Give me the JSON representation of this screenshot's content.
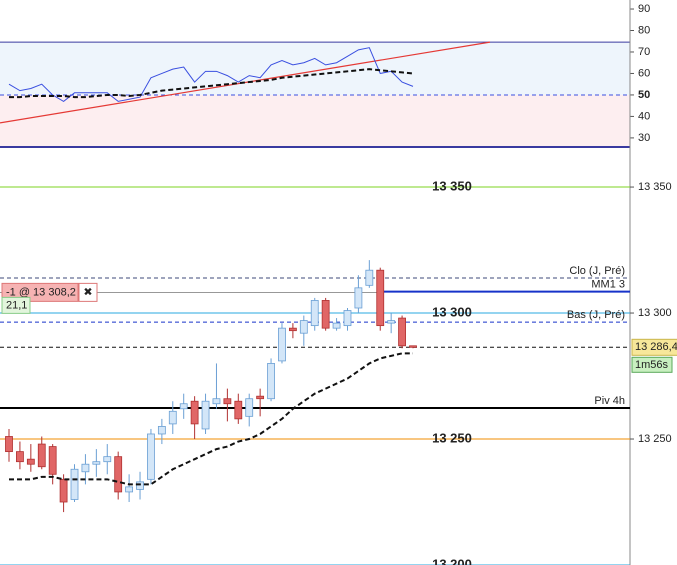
{
  "chart_data": [
    {
      "type": "line",
      "ylim": [
        25.3,
        94.2
      ],
      "yticks": [
        90,
        80,
        70,
        60,
        50,
        40,
        30
      ],
      "bands": {
        "upper": 74.6,
        "mid": 50,
        "lower": 25.3
      },
      "trendline": {
        "start": 37,
        "end": 74.6,
        "color": "#e53935"
      },
      "series": [
        {
          "color": "#3a4fe0",
          "values": [
            55,
            52,
            53,
            55,
            50,
            47,
            51,
            51,
            51,
            51,
            47,
            48,
            49,
            58,
            60,
            62,
            63,
            56,
            61,
            61,
            59,
            56,
            59,
            58,
            64,
            66,
            64,
            65,
            67,
            64,
            65,
            68,
            71,
            72,
            60,
            61,
            56,
            54
          ]
        },
        {
          "color": "#111111",
          "dash": true,
          "values": [
            49,
            49,
            49.5,
            49.5,
            49.5,
            49.5,
            49,
            49,
            49.5,
            50,
            50,
            49.5,
            50,
            51,
            52,
            52.5,
            53,
            53.5,
            54,
            54.5,
            55,
            55.5,
            56,
            56.5,
            57,
            58,
            58.5,
            59,
            59.5,
            60,
            60.5,
            61,
            61.5,
            62,
            61.5,
            61,
            60.5,
            60
          ]
        }
      ]
    },
    {
      "type": "candlestick",
      "ylim": [
        13200,
        13365.5
      ],
      "yticks": [
        {
          "value": 13350,
          "label": "13 350"
        },
        {
          "value": 13300,
          "label": "13 300"
        },
        {
          "value": 13250,
          "label": "13 250"
        }
      ],
      "open": [
        13251,
        13245,
        13242,
        13248,
        13247,
        13234,
        13226,
        13237,
        13240,
        13241,
        13243,
        13229,
        13230,
        13234,
        13252,
        13256,
        13262,
        13265,
        13254,
        13264,
        13266,
        13265,
        13259,
        13267,
        13266,
        13281,
        13294,
        13292,
        13295,
        13305,
        13294,
        13295,
        13302,
        13311,
        13317,
        13296,
        13298,
        13287
      ],
      "high": [
        13254,
        13249,
        13248,
        13251,
        13248,
        13236,
        13240,
        13244,
        13246,
        13248,
        13245,
        13236,
        13237,
        13254,
        13258,
        13265,
        13268,
        13267,
        13268,
        13280,
        13270,
        13268,
        13268,
        13270,
        13282,
        13296,
        13296,
        13299,
        13306,
        13306,
        13298,
        13302,
        13315,
        13321,
        13318,
        13300,
        13299,
        13287
      ],
      "low": [
        13241,
        13238,
        13237,
        13238,
        13232,
        13221,
        13225,
        13232,
        13235,
        13236,
        13226,
        13225,
        13226,
        13232,
        13248,
        13252,
        13258,
        13250,
        13252,
        13262,
        13257,
        13256,
        13255,
        13259,
        13265,
        13280,
        13290,
        13287,
        13293,
        13293,
        13293,
        13293,
        13300,
        13310,
        13293,
        13292,
        13286,
        13286
      ],
      "close": [
        13245,
        13241,
        13240,
        13239,
        13236,
        13225,
        13238,
        13240,
        13241,
        13243,
        13229,
        13231,
        13233,
        13252,
        13255,
        13261,
        13264,
        13256,
        13265,
        13266,
        13264,
        13258,
        13266,
        13266,
        13280,
        13294,
        13293,
        13297,
        13305,
        13294,
        13296,
        13301,
        13310,
        13317,
        13295,
        13297,
        13287,
        13286.4
      ],
      "up_color": "#d3e6f8",
      "down_color": "#e06666",
      "moving_average": {
        "color": "#111111",
        "values": [
          13234,
          13234,
          13234,
          13235,
          13235,
          13234,
          13234,
          13234,
          13234,
          13234,
          13233,
          13232,
          13232,
          13232,
          13235,
          13238,
          13240,
          13242,
          13244,
          13246,
          13247,
          13249,
          13250,
          13252,
          13255,
          13258,
          13262,
          13265,
          13268,
          13270,
          13272,
          13274,
          13277,
          13280,
          13282,
          13283,
          13284,
          13284
        ]
      },
      "levels": [
        {
          "value": 13350,
          "label": "13 350",
          "color": "#7ed321",
          "style": "big"
        },
        {
          "value": 13300,
          "label": "13 300",
          "color": "#29a8e0",
          "style": "big"
        },
        {
          "value": 13250,
          "label": "13 250",
          "color": "#f08c00",
          "style": "big"
        },
        {
          "value": 13200,
          "label": "13 200",
          "color": "#29a8e0",
          "style": "big"
        },
        {
          "value": 13313.9,
          "label": "Clo (J, Pré)",
          "color": "#3c4a7a",
          "style": "dash"
        },
        {
          "value": 13308.5,
          "label": "MM1 3",
          "color": "#1733c9",
          "style": "solid"
        },
        {
          "value": 13296.4,
          "label": "Bas (J, Pré)",
          "color": "#1733c9",
          "style": "dash"
        },
        {
          "value": 13262.3,
          "label": "Piv 4h",
          "color": "#000000",
          "style": "pivot"
        }
      ],
      "order": {
        "value": 13308.2,
        "label": "-1 @ 13 308,2",
        "close": "✖"
      },
      "position_size": "21,1",
      "last_price": {
        "value": 13286.4,
        "label": "13 286,4"
      },
      "timer": "1m56s"
    }
  ]
}
